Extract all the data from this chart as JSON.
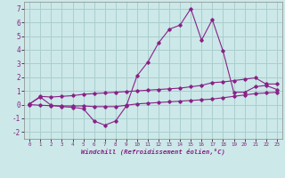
{
  "xlabel": "Windchill (Refroidissement éolien,°C)",
  "bg_color": "#cce8e8",
  "grid_color": "#aacece",
  "line_color": "#882288",
  "x_main": [
    0,
    1,
    2,
    3,
    4,
    5,
    6,
    7,
    8,
    9,
    10,
    11,
    12,
    13,
    14,
    15,
    16,
    17,
    18,
    19,
    20,
    21,
    22,
    23
  ],
  "y_main": [
    0.05,
    0.55,
    -0.05,
    -0.15,
    -0.2,
    -0.3,
    -1.2,
    -1.5,
    -1.2,
    -0.1,
    2.1,
    3.1,
    4.5,
    5.5,
    5.8,
    7.0,
    4.7,
    6.2,
    3.9,
    0.9,
    0.9,
    1.3,
    1.4,
    1.1
  ],
  "x_upper": [
    0,
    1,
    2,
    3,
    4,
    5,
    6,
    7,
    8,
    9,
    10,
    11,
    12,
    13,
    14,
    15,
    16,
    17,
    18,
    19,
    20,
    21,
    22,
    23
  ],
  "y_upper": [
    0.05,
    0.6,
    0.55,
    0.6,
    0.65,
    0.75,
    0.8,
    0.85,
    0.9,
    0.95,
    1.0,
    1.05,
    1.1,
    1.15,
    1.2,
    1.3,
    1.4,
    1.6,
    1.65,
    1.75,
    1.85,
    1.95,
    1.5,
    1.5
  ],
  "x_lower": [
    0,
    1,
    2,
    3,
    4,
    5,
    6,
    7,
    8,
    9,
    10,
    11,
    12,
    13,
    14,
    15,
    16,
    17,
    18,
    19,
    20,
    21,
    22,
    23
  ],
  "y_lower": [
    0.0,
    -0.05,
    -0.08,
    -0.1,
    -0.1,
    -0.1,
    -0.15,
    -0.15,
    -0.15,
    -0.05,
    0.05,
    0.1,
    0.15,
    0.2,
    0.25,
    0.3,
    0.35,
    0.4,
    0.5,
    0.6,
    0.7,
    0.8,
    0.85,
    0.9
  ],
  "ylim": [
    -2.5,
    7.5
  ],
  "xlim": [
    -0.5,
    23.5
  ],
  "yticks": [
    -2,
    -1,
    0,
    1,
    2,
    3,
    4,
    5,
    6,
    7
  ],
  "xticks": [
    0,
    1,
    2,
    3,
    4,
    5,
    6,
    7,
    8,
    9,
    10,
    11,
    12,
    13,
    14,
    15,
    16,
    17,
    18,
    19,
    20,
    21,
    22,
    23
  ],
  "figsize": [
    3.2,
    2.0
  ],
  "dpi": 100
}
